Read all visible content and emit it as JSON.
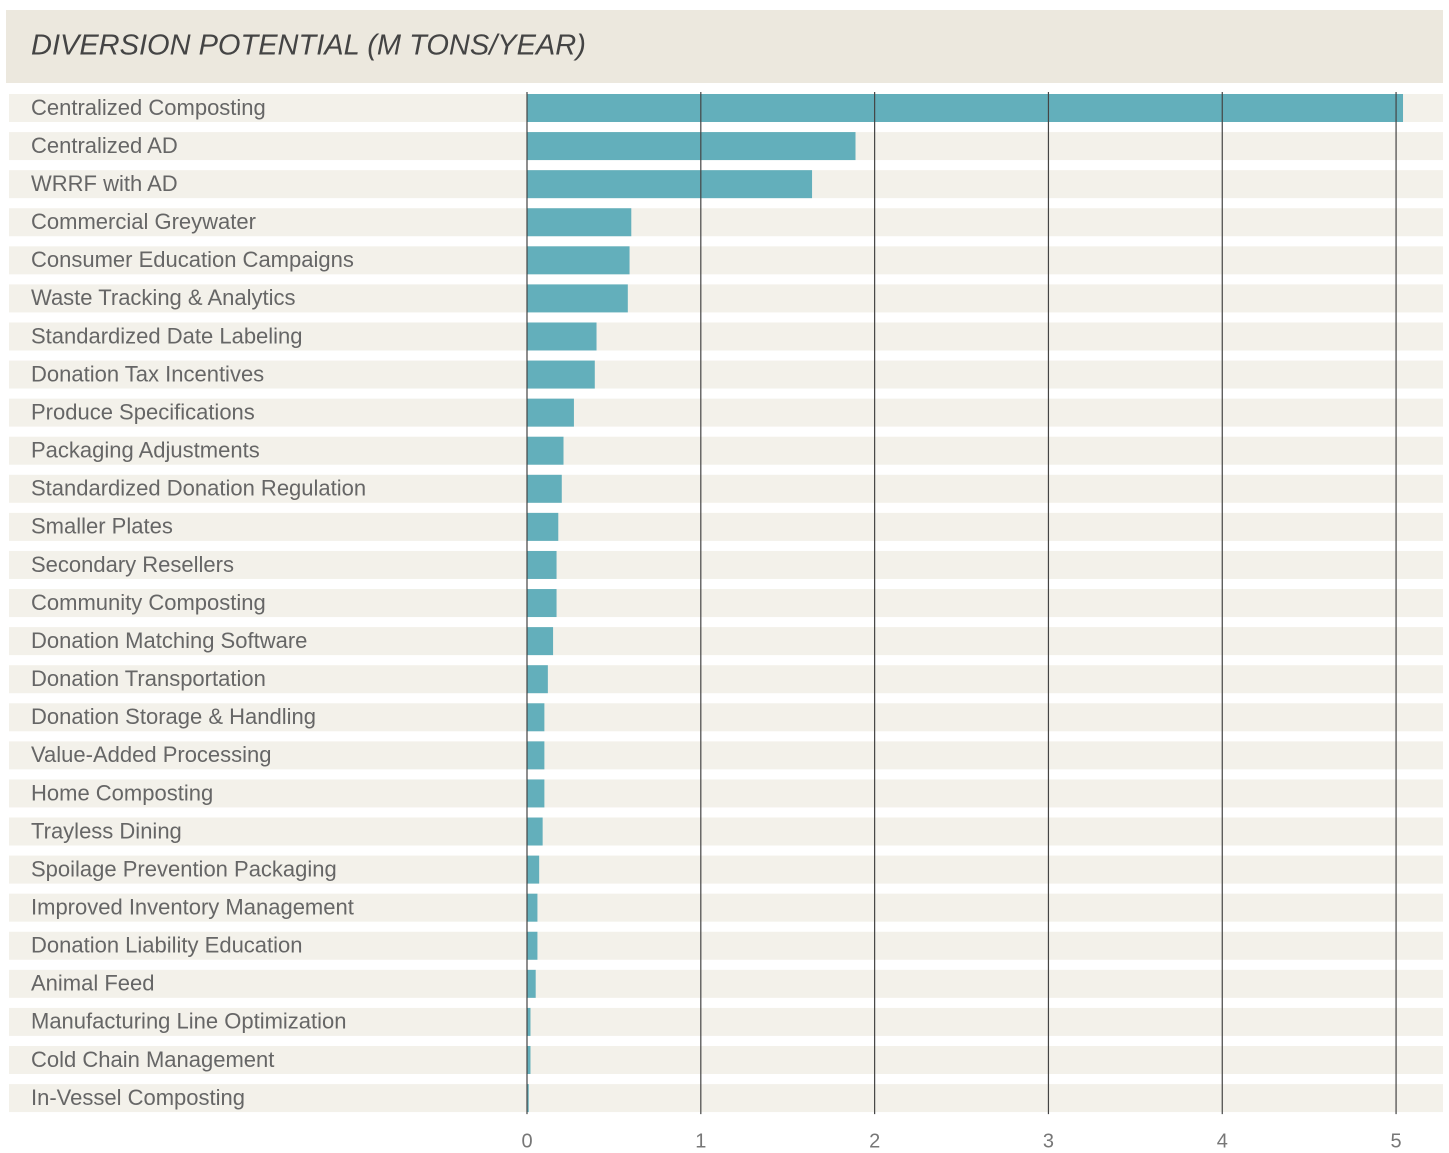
{
  "chart_data": {
    "type": "barh",
    "title": "DIVERSION POTENTIAL (M TONS/YEAR)",
    "categories": [
      "Centralized Composting",
      "Centralized AD",
      "WRRF with AD",
      "Commercial Greywater",
      "Consumer Education Campaigns",
      "Waste Tracking & Analytics",
      "Standardized Date Labeling",
      "Donation Tax Incentives",
      "Produce Specifications",
      "Packaging Adjustments",
      "Standardized Donation Regulation",
      "Smaller Plates",
      "Secondary Resellers",
      "Community Composting",
      "Donation Matching Software",
      "Donation Transportation",
      "Donation Storage & Handling",
      "Value-Added Processing",
      "Home Composting",
      "Trayless Dining",
      "Spoilage Prevention Packaging",
      "Improved Inventory Management",
      "Donation Liability Education",
      "Animal Feed",
      "Manufacturing Line Optimization",
      "Cold Chain Management",
      "In-Vessel Composting"
    ],
    "values": [
      5.04,
      1.89,
      1.64,
      0.6,
      0.59,
      0.58,
      0.4,
      0.39,
      0.27,
      0.21,
      0.2,
      0.18,
      0.17,
      0.17,
      0.15,
      0.12,
      0.1,
      0.1,
      0.1,
      0.09,
      0.07,
      0.06,
      0.06,
      0.05,
      0.02,
      0.02,
      0.01
    ],
    "color": "#63afbb",
    "xlim": [
      0,
      5.27
    ],
    "xticks": [
      0,
      1,
      2,
      3,
      4,
      5
    ],
    "grid": true
  }
}
